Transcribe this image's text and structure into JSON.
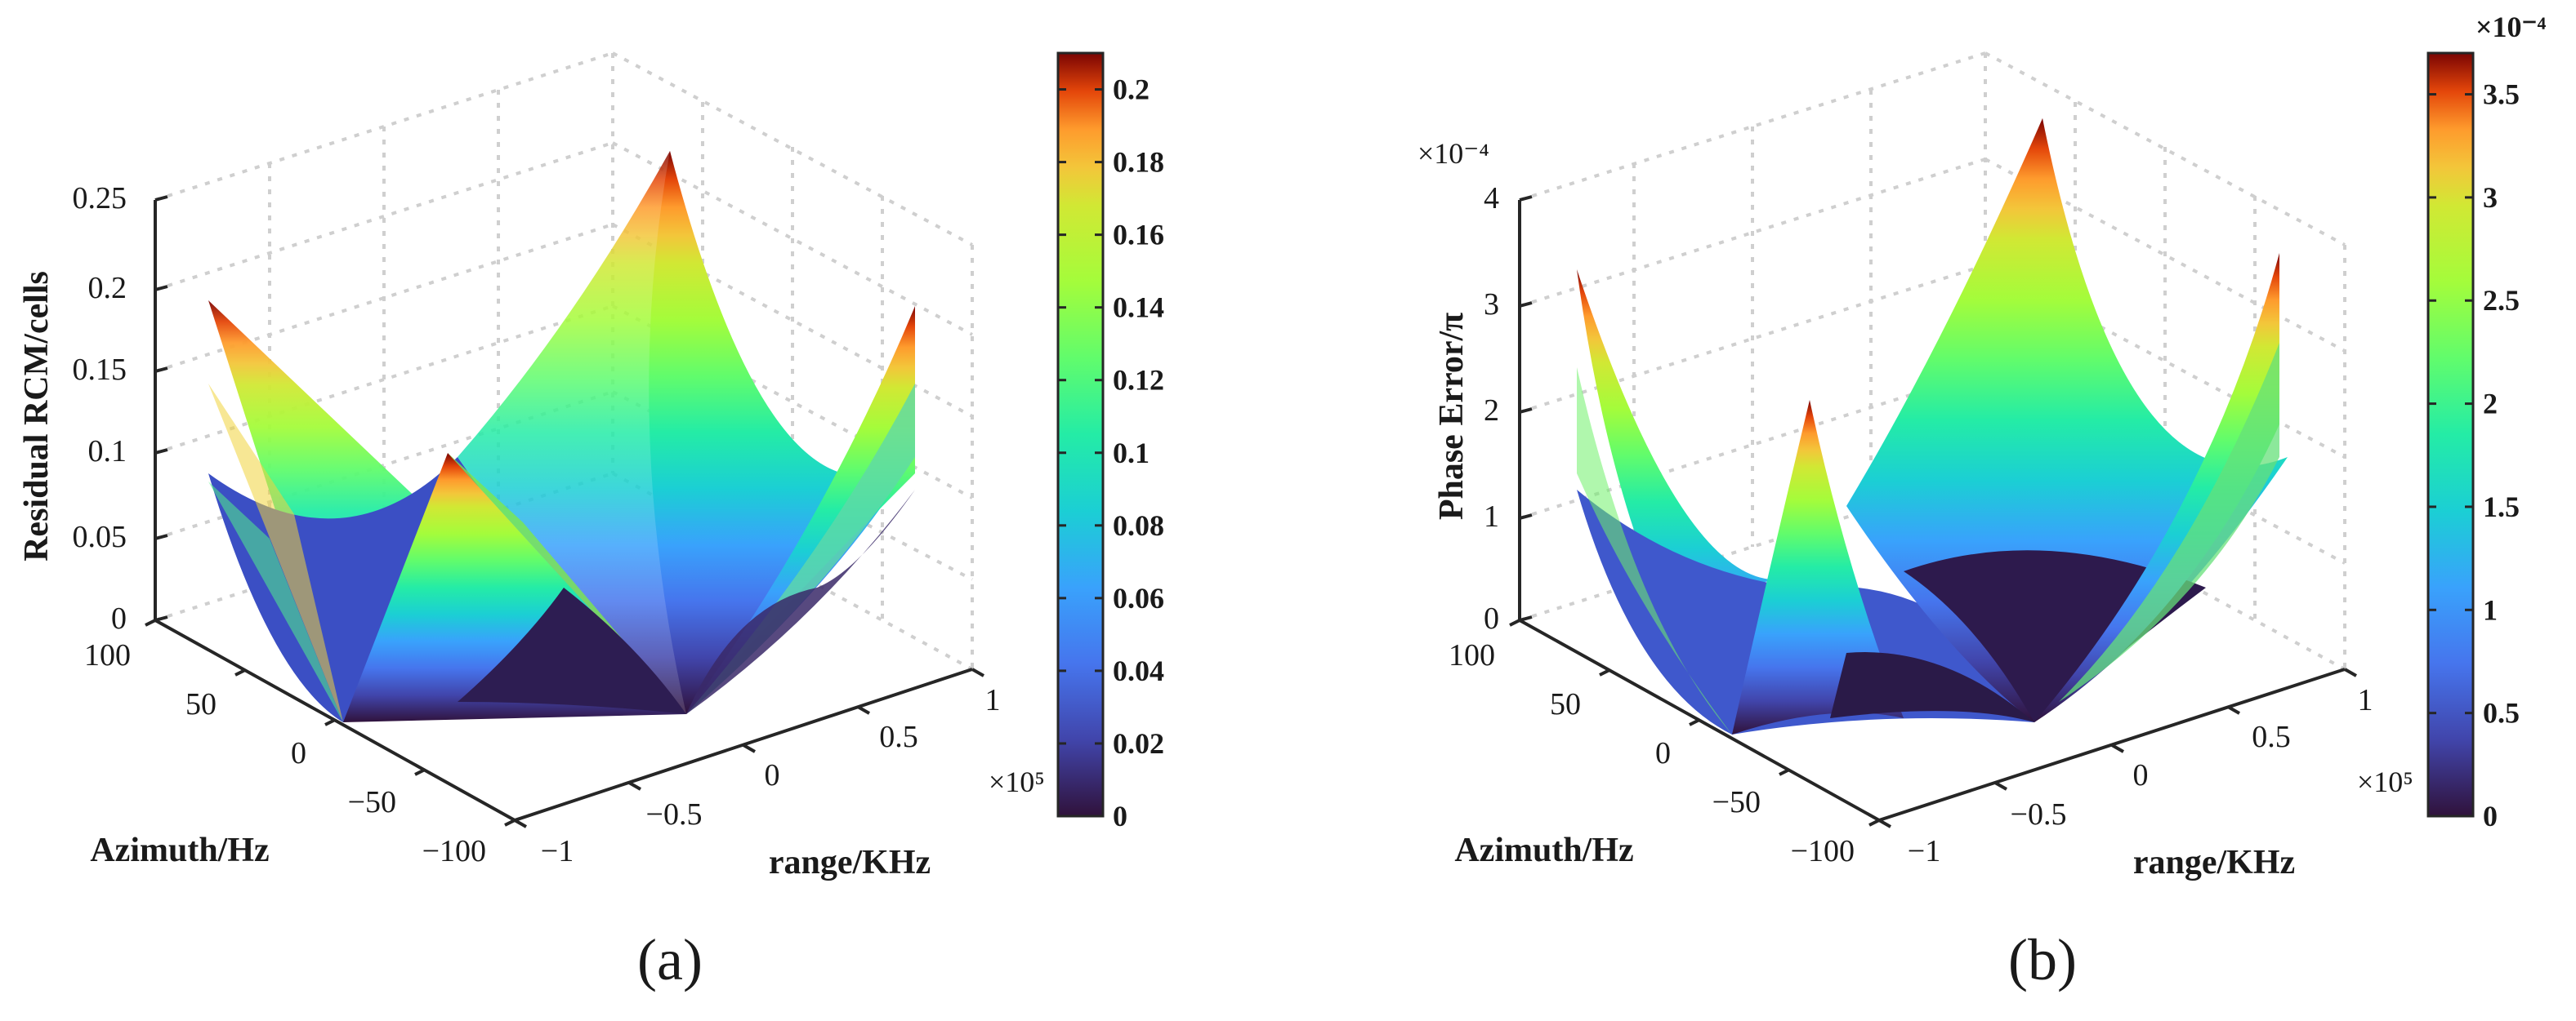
{
  "figure": {
    "panels": [
      {
        "id": "a",
        "caption": "(a)",
        "zlabel": "Residual RCM/cells",
        "xlabel": "Azimuth/Hz",
        "ylabel": "range/KHz",
        "range_multiplier": "×10⁵",
        "z_multiplier": "",
        "cb_multiplier": ""
      },
      {
        "id": "b",
        "caption": "(b)",
        "zlabel": "Phase Error/π",
        "xlabel": "Azimuth/Hz",
        "ylabel": "range/KHz",
        "range_multiplier": "×10⁵",
        "z_multiplier": "×10⁻⁴",
        "cb_multiplier": "×10⁻⁴"
      }
    ]
  },
  "chart_data": [
    {
      "type": "surface",
      "title": "",
      "xlabel": "Azimuth/Hz",
      "ylabel": "range/KHz",
      "zlabel": "Residual RCM/cells",
      "azimuth_range": [
        -100,
        100
      ],
      "range_range": [
        -1,
        1
      ],
      "range_scale": "×10⁵",
      "zlim": [
        0,
        0.25
      ],
      "azimuth_ticks": [
        "−100",
        "−50",
        "0",
        "50",
        "100"
      ],
      "range_ticks": [
        "−1",
        "−0.5",
        "0",
        "0.5",
        "1"
      ],
      "z_ticks": [
        "0",
        "0.05",
        "0.1",
        "0.15",
        "0.2",
        "0.25"
      ],
      "colorbar": {
        "range": [
          0,
          0.21
        ],
        "ticks": [
          "0",
          "0.02",
          "0.04",
          "0.06",
          "0.08",
          "0.1",
          "0.12",
          "0.14",
          "0.16",
          "0.18",
          "0.2"
        ],
        "colormap": "turbo"
      },
      "surface_sheets": [
        {
          "max": 0.21,
          "min_ratio": 0.0
        },
        {
          "max": 0.158,
          "min_ratio": 0.0
        },
        {
          "max": 0.123,
          "min_ratio": 0.0
        }
      ],
      "grid": true
    },
    {
      "type": "surface",
      "title": "",
      "xlabel": "Azimuth/Hz",
      "ylabel": "range/KHz",
      "zlabel": "Phase Error/π",
      "azimuth_range": [
        -100,
        100
      ],
      "range_range": [
        -1,
        1
      ],
      "range_scale": "×10⁵",
      "z_scale": "×10⁻⁴",
      "zlim": [
        0,
        4
      ],
      "azimuth_ticks": [
        "−100",
        "−50",
        "0",
        "50",
        "100"
      ],
      "range_ticks": [
        "−1",
        "−0.5",
        "0",
        "0.5",
        "1"
      ],
      "z_ticks": [
        "0",
        "1",
        "2",
        "3",
        "4"
      ],
      "colorbar": {
        "range": [
          0,
          3.7
        ],
        "scale": "×10⁻⁴",
        "ticks": [
          "0",
          "0.5",
          "1",
          "1.5",
          "2",
          "2.5",
          "3",
          "3.5"
        ],
        "colormap": "turbo"
      },
      "surface_sheets": [
        {
          "max": 3.7,
          "min_ratio": 0.0
        },
        {
          "max": 2.9,
          "min_ratio": 0.0
        },
        {
          "max": 2.3,
          "min_ratio": 0.0
        }
      ],
      "grid": true
    }
  ]
}
